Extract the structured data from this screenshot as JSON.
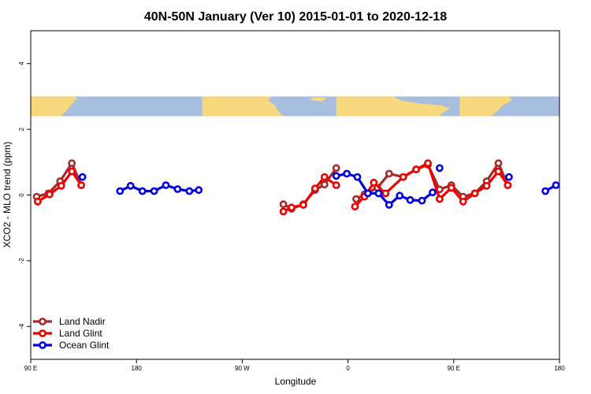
{
  "chart_data": {
    "type": "line",
    "title": "40N-50N January (Ver 10)   2015-01-01 to 2020-12-18",
    "xlabel": "Longitude",
    "ylabel": "XCO2 - MLO trend (ppm)",
    "xlim": [
      90,
      540
    ],
    "ylim": [
      -5,
      5
    ],
    "x_ticks": [
      {
        "value": 90,
        "label": "90 E"
      },
      {
        "value": 180,
        "label": "180"
      },
      {
        "value": 270,
        "label": "90 W"
      },
      {
        "value": 360,
        "label": "0"
      },
      {
        "value": 450,
        "label": "90 E"
      },
      {
        "value": 540,
        "label": "180"
      }
    ],
    "y_ticks": [
      {
        "value": -4,
        "label": "-4"
      },
      {
        "value": -2,
        "label": "-2"
      },
      {
        "value": 0,
        "label": "0"
      },
      {
        "value": 2,
        "label": "2"
      },
      {
        "value": 4,
        "label": "4"
      }
    ],
    "grid": false,
    "legend_position": "bottom-left",
    "map_strip": {
      "y_range": [
        2.4,
        3.0
      ],
      "ocean_color": "#a8bedf",
      "land_color": "#f7d87c"
    },
    "series": [
      {
        "name": "Land Nadir",
        "color": "#a52a2a",
        "segments": [
          [
            [
              95,
              -0.05
            ],
            [
              105,
              0.05
            ],
            [
              115,
              0.42
            ],
            [
              125,
              0.97
            ],
            [
              133,
              0.3
            ]
          ],
          [
            [
              305,
              -0.28
            ],
            [
              312,
              -0.42
            ],
            [
              322,
              -0.28
            ],
            [
              332,
              0.15
            ],
            [
              340,
              0.32
            ],
            [
              350,
              0.82
            ]
          ],
          [
            [
              367,
              -0.12
            ],
            [
              374,
              0.02
            ],
            [
              385,
              0.22
            ],
            [
              395,
              0.65
            ],
            [
              407,
              0.55
            ],
            [
              418,
              0.78
            ],
            [
              428,
              0.92
            ],
            [
              438,
              0.17
            ],
            [
              448,
              0.3
            ],
            [
              458,
              -0.05
            ],
            [
              468,
              0.05
            ],
            [
              478,
              0.42
            ],
            [
              488,
              0.97
            ],
            [
              496,
              0.3
            ]
          ]
        ]
      },
      {
        "name": "Land Glint",
        "color": "#ee0000",
        "segments": [
          [
            [
              96,
              -0.2
            ],
            [
              106,
              0.02
            ],
            [
              116,
              0.28
            ],
            [
              125,
              0.72
            ],
            [
              133,
              0.3
            ]
          ],
          [
            [
              305,
              -0.5
            ],
            [
              312,
              -0.38
            ],
            [
              322,
              -0.3
            ],
            [
              332,
              0.2
            ],
            [
              340,
              0.55
            ],
            [
              350,
              0.3
            ]
          ],
          [
            [
              366,
              -0.35
            ],
            [
              374,
              -0.05
            ],
            [
              382,
              0.38
            ],
            [
              392,
              0.05
            ],
            [
              407,
              0.55
            ],
            [
              418,
              0.78
            ],
            [
              428,
              0.97
            ],
            [
              438,
              -0.12
            ],
            [
              448,
              0.22
            ],
            [
              458,
              -0.2
            ],
            [
              468,
              0.05
            ],
            [
              478,
              0.28
            ],
            [
              488,
              0.72
            ],
            [
              496,
              0.3
            ]
          ]
        ]
      },
      {
        "name": "Ocean Glint",
        "color": "#0000dd",
        "segments": [
          [
            [
              134,
              0.55
            ]
          ],
          [
            [
              166,
              0.12
            ],
            [
              175,
              0.28
            ],
            [
              185,
              0.12
            ],
            [
              195,
              0.12
            ],
            [
              205,
              0.3
            ],
            [
              215,
              0.18
            ],
            [
              225,
              0.12
            ],
            [
              233,
              0.15
            ]
          ],
          [
            [
              350,
              0.58
            ],
            [
              359,
              0.65
            ],
            [
              368,
              0.55
            ],
            [
              377,
              0.05
            ],
            [
              386,
              0.05
            ],
            [
              395,
              -0.3
            ],
            [
              404,
              -0.02
            ],
            [
              413,
              -0.15
            ],
            [
              423,
              -0.17
            ],
            [
              432,
              0.08
            ]
          ],
          [
            [
              438,
              0.82
            ]
          ],
          [
            [
              497,
              0.55
            ]
          ],
          [
            [
              528,
              0.12
            ],
            [
              537,
              0.3
            ]
          ]
        ]
      }
    ]
  }
}
